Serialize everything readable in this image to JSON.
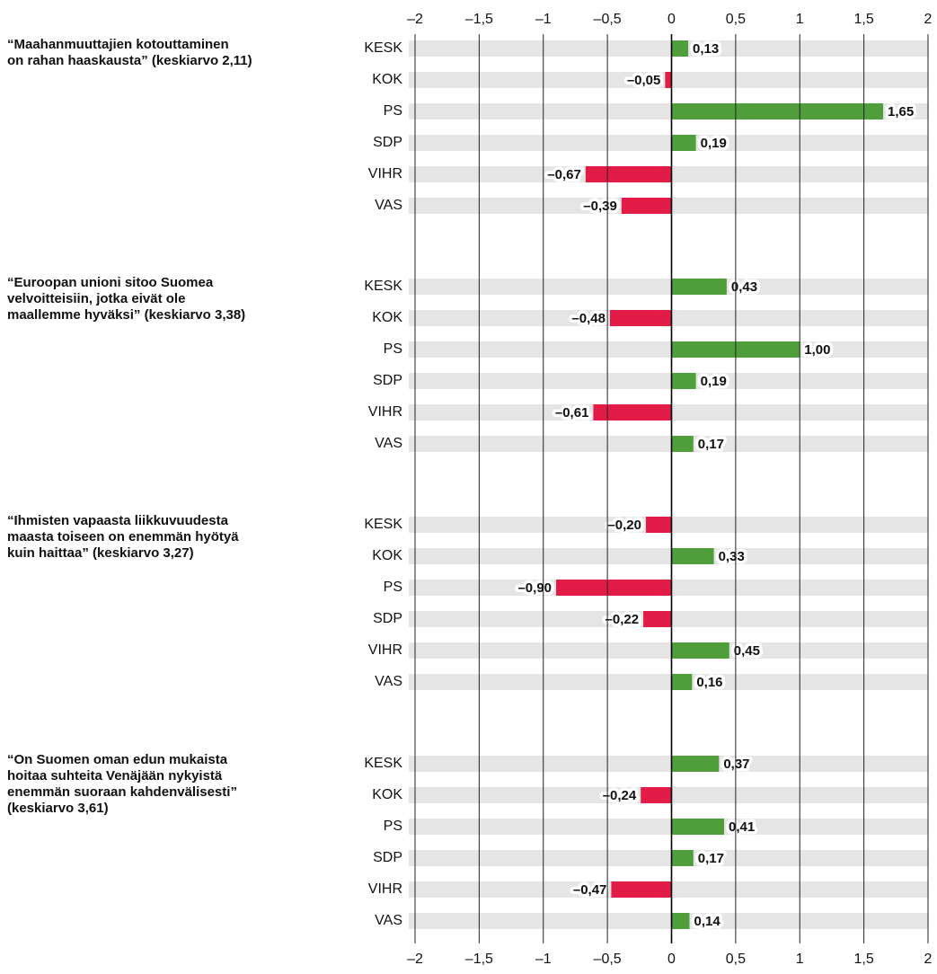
{
  "chart_data": {
    "type": "bar",
    "orientation": "horizontal",
    "xlim": [
      -2,
      2
    ],
    "xticks": [
      {
        "value": -2,
        "label": "–2"
      },
      {
        "value": -1.5,
        "label": "–1,5"
      },
      {
        "value": -1,
        "label": "–1"
      },
      {
        "value": -0.5,
        "label": "–0,5"
      },
      0,
      {
        "value": 0.5,
        "label": "0,5"
      },
      1,
      {
        "value": 1.5,
        "label": "1,5"
      },
      2
    ],
    "grid": true,
    "positive_color": "#4f9e3b",
    "negative_color": "#e31c47",
    "band_color": "#e5e5e5",
    "panels": [
      {
        "title": [
          "“Maahanmuuttajien kotouttaminen",
          "on rahan haaskausta” (keskiarvo 2,11)"
        ],
        "categories": [
          "KESK",
          "KOK",
          "PS",
          "SDP",
          "VIHR",
          "VAS"
        ],
        "values": [
          0.13,
          -0.05,
          1.65,
          0.19,
          -0.67,
          -0.39
        ],
        "value_labels": [
          "0,13",
          "–0,05",
          "1,65",
          "0,19",
          "–0,67",
          "–0,39"
        ]
      },
      {
        "title": [
          "“Euroopan unioni sitoo Suomea",
          "velvoitteisiin, jotka eivät ole",
          "maallemme hyväksi” (keskiarvo 3,38)"
        ],
        "categories": [
          "KESK",
          "KOK",
          "PS",
          "SDP",
          "VIHR",
          "VAS"
        ],
        "values": [
          0.43,
          -0.48,
          1.0,
          0.19,
          -0.61,
          0.17
        ],
        "value_labels": [
          "0,43",
          "–0,48",
          "1,00",
          "0,19",
          "–0,61",
          "0,17"
        ]
      },
      {
        "title": [
          "“Ihmisten vapaasta liikkuvuudesta",
          "maasta toiseen on enemmän hyötyä",
          "kuin haittaa” (keskiarvo 3,27)"
        ],
        "categories": [
          "KESK",
          "KOK",
          "PS",
          "SDP",
          "VIHR",
          "VAS"
        ],
        "values": [
          -0.2,
          0.33,
          -0.9,
          -0.22,
          0.45,
          0.16
        ],
        "value_labels": [
          "–0,20",
          "0,33",
          "–0,90",
          "–0,22",
          "0,45",
          "0,16"
        ]
      },
      {
        "title": [
          "“On Suomen oman edun mukaista",
          "hoitaa suhteita Venäjään nykyistä",
          "enemmän suoraan kahdenvälisesti”",
          "(keskiarvo 3,61)"
        ],
        "categories": [
          "KESK",
          "KOK",
          "PS",
          "SDP",
          "VIHR",
          "VAS"
        ],
        "values": [
          0.37,
          -0.24,
          0.41,
          0.17,
          -0.47,
          0.14
        ],
        "value_labels": [
          "0,37",
          "–0,24",
          "0,41",
          "0,17",
          "–0,47",
          "0,14"
        ]
      }
    ]
  }
}
